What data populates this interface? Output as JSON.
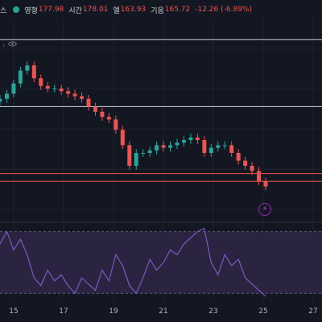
{
  "header": {
    "symbol_fragment": "스",
    "status_color": "#26a69a",
    "open_label": "영형",
    "open_value": "177.98",
    "high_label": "시간",
    "high_value": "178.01",
    "low_label": "엘",
    "low_value": "163.93",
    "close_label": "기음",
    "close_value": "165.72",
    "change_value": "-12.26 (-6.89%)",
    "value_color": "#ef5350"
  },
  "overlay": {
    "collapse_glyph": "›",
    "visibility_icon": "eye-icon",
    "alert_icon": "lightning-icon",
    "alert_glyph": "⚡"
  },
  "time_axis": {
    "labels": [
      "15",
      "17",
      "19",
      "21",
      "23",
      "25",
      "27"
    ]
  },
  "chart_data": [
    {
      "type": "line",
      "series": [
        {
          "values": [
            176,
            178,
            182,
            187,
            189,
            184,
            181,
            180,
            180,
            179,
            178,
            177,
            176,
            173,
            171,
            169,
            168,
            164,
            158,
            150,
            155,
            155,
            156,
            158,
            157,
            158,
            159,
            160,
            161,
            160,
            155,
            157,
            158,
            158,
            155,
            152,
            150,
            148,
            144,
            142
          ]
        }
      ],
      "reference_lines": [
        {
          "value": 199,
          "color": "#d1d4dc"
        },
        {
          "value": 173,
          "color": "#d1d4dc"
        },
        {
          "value": 147,
          "color": "#ef5350"
        },
        {
          "value": 144,
          "color": "#ef5350"
        }
      ],
      "colors": {
        "up": "#26a69a",
        "down": "#ef5350"
      }
    },
    {
      "type": "line",
      "series": [
        {
          "values": [
            62,
            70,
            58,
            65,
            55,
            40,
            35,
            45,
            38,
            42,
            35,
            30,
            40,
            36,
            32,
            45,
            38,
            55,
            48,
            35,
            30,
            40,
            52,
            45,
            50,
            58,
            55,
            62,
            66,
            70,
            72,
            50,
            42,
            55,
            48,
            52,
            40,
            36,
            32,
            28
          ]
        }
      ],
      "ylim": [
        25,
        75
      ],
      "band": [
        30,
        70
      ],
      "colors": {
        "line": "#7e57c2",
        "band": "#2a2440"
      }
    }
  ]
}
